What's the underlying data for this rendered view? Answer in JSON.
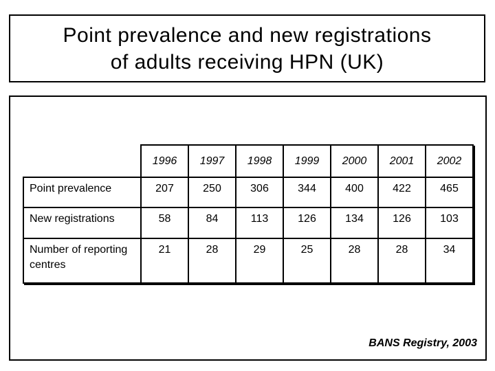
{
  "slide": {
    "title_lines": [
      "Point prevalence and new registrations",
      "of adults receiving HPN (UK)"
    ],
    "source": "BANS Registry, 2003"
  },
  "table": {
    "year_headers": [
      "1996",
      "1997",
      "1998",
      "1999",
      "2000",
      "2001",
      "2002"
    ],
    "rows": [
      {
        "label": "Point prevalence",
        "values": [
          "207",
          "250",
          "306",
          "344",
          "400",
          "422",
          "465"
        ]
      },
      {
        "label": "New registrations",
        "values": [
          "58",
          "84",
          "113",
          "126",
          "134",
          "126",
          "103"
        ]
      },
      {
        "label": "Number of reporting centres",
        "values": [
          "21",
          "28",
          "29",
          "25",
          "28",
          "28",
          "34"
        ]
      }
    ]
  },
  "chart_data": {
    "type": "table",
    "title": "Point prevalence and new registrations of adults receiving HPN (UK)",
    "categories": [
      "1996",
      "1997",
      "1998",
      "1999",
      "2000",
      "2001",
      "2002"
    ],
    "series": [
      {
        "name": "Point prevalence",
        "values": [
          207,
          250,
          306,
          344,
          400,
          422,
          465
        ]
      },
      {
        "name": "New registrations",
        "values": [
          58,
          84,
          113,
          126,
          134,
          126,
          103
        ]
      },
      {
        "name": "Number of reporting centres",
        "values": [
          21,
          28,
          29,
          25,
          28,
          28,
          34
        ]
      }
    ],
    "annotation": "BANS Registry, 2003"
  },
  "colors": {
    "background": "#ffffff",
    "border": "#000000",
    "text": "#000000"
  }
}
